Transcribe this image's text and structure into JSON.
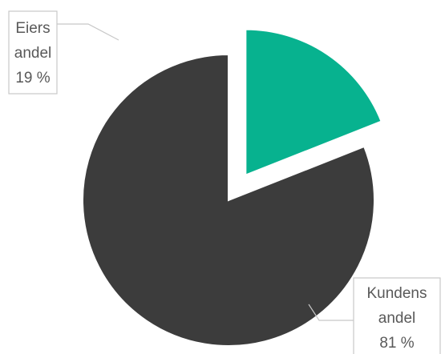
{
  "chart_data": {
    "type": "pie",
    "exploded": true,
    "slices": [
      {
        "label_lines": [
          "Eiers",
          "andel",
          "19 %"
        ],
        "value": 19,
        "color": "#07b28f",
        "exploded": true
      },
      {
        "label_lines": [
          "Kundens",
          "andel",
          "81 %"
        ],
        "value": 81,
        "color": "#3c3c3c",
        "exploded": false
      }
    ],
    "legend": "none",
    "labels": "callout boxes with leader lines"
  }
}
